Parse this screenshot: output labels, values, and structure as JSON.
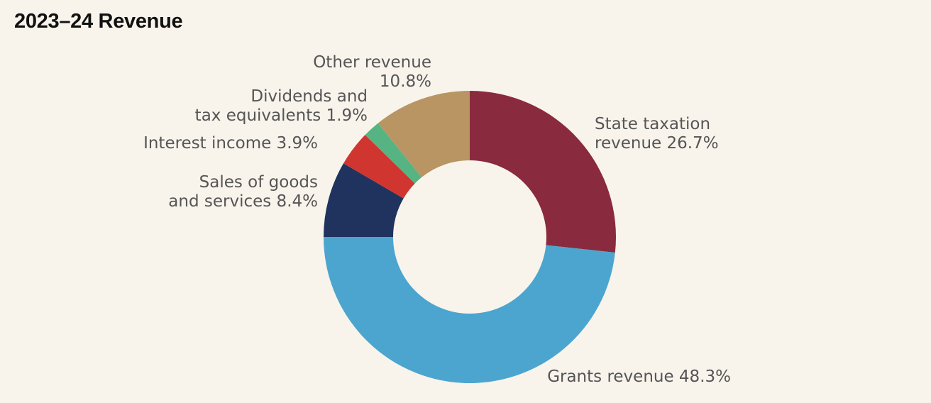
{
  "chart_data": {
    "type": "pie",
    "donut": true,
    "title": "2023–24 Revenue",
    "start_angle_deg": 0,
    "direction": "clockwise",
    "slices": [
      {
        "label_lines": [
          "State taxation",
          "revenue 26.7%"
        ],
        "value": 26.7,
        "color": "#8a2a3e"
      },
      {
        "label_lines": [
          "Grants revenue 48.3%"
        ],
        "value": 48.3,
        "color": "#4ca5cf"
      },
      {
        "label_lines": [
          "Sales of goods",
          "and services 8.4%"
        ],
        "value": 8.4,
        "color": "#20335e"
      },
      {
        "label_lines": [
          "Interest income 3.9%"
        ],
        "value": 3.9,
        "color": "#d03530"
      },
      {
        "label_lines": [
          "Dividends and",
          "tax equivalents 1.9%"
        ],
        "value": 1.9,
        "color": "#56b482"
      },
      {
        "label_lines": [
          "Other revenue",
          "10.8%"
        ],
        "value": 10.8,
        "color": "#b89562"
      }
    ]
  }
}
